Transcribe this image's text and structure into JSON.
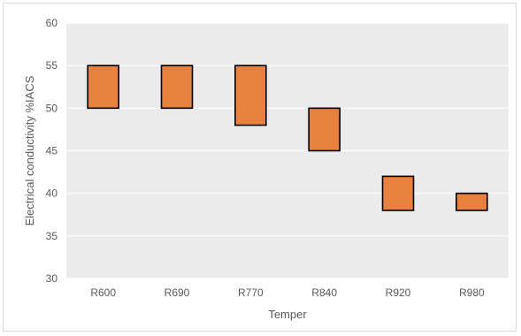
{
  "chart_data": {
    "type": "bar",
    "subtype": "floating-range",
    "categories": [
      "R600",
      "R690",
      "R770",
      "R840",
      "R920",
      "R980"
    ],
    "series": [
      {
        "low": [
          50,
          50,
          48,
          45,
          38,
          38
        ],
        "high": [
          55,
          55,
          55,
          50,
          42,
          40
        ]
      }
    ],
    "xlabel": "Temper",
    "ylabel": "Electrical conductivity  %IACS",
    "ylim": [
      30,
      60
    ],
    "yticks": [
      30,
      35,
      40,
      45,
      50,
      55,
      60
    ],
    "grid": true,
    "legend": "none",
    "colors": {
      "bar_fill": "#E8803F",
      "bar_stroke": "#000000",
      "plot_background": "#EBEBEB",
      "gridline": "#FFFFFF",
      "tick_text": "#595959"
    }
  }
}
